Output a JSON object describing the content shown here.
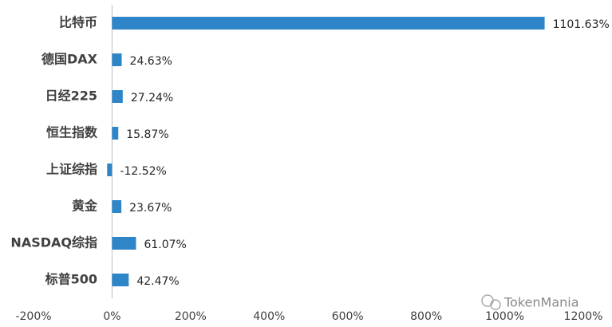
{
  "chart_data": {
    "type": "bar",
    "orientation": "horizontal",
    "categories": [
      "比特币",
      "德国DAX",
      "日经225",
      "恒生指数",
      "上证综指",
      "黄金",
      "NASDAQ综指",
      "标普500"
    ],
    "values": [
      1101.63,
      24.63,
      27.24,
      15.87,
      -12.52,
      23.67,
      61.07,
      42.47
    ],
    "value_labels": [
      "1101.63%",
      "24.63%",
      "27.24%",
      "15.87%",
      "-12.52%",
      "23.67%",
      "61.07%",
      "42.47%"
    ],
    "color": "#2e86c9",
    "xlim": [
      -200,
      1200
    ],
    "xticks": [
      {
        "value": -200,
        "label": "-200%"
      },
      {
        "value": 0,
        "label": "0%"
      },
      {
        "value": 200,
        "label": "200%"
      },
      {
        "value": 400,
        "label": "400%"
      },
      {
        "value": 600,
        "label": "600%"
      },
      {
        "value": 800,
        "label": "800%"
      },
      {
        "value": 1000,
        "label": "1000%"
      },
      {
        "value": 1200,
        "label": "1200%"
      }
    ],
    "grid": false,
    "watermark": "TokenMania"
  }
}
